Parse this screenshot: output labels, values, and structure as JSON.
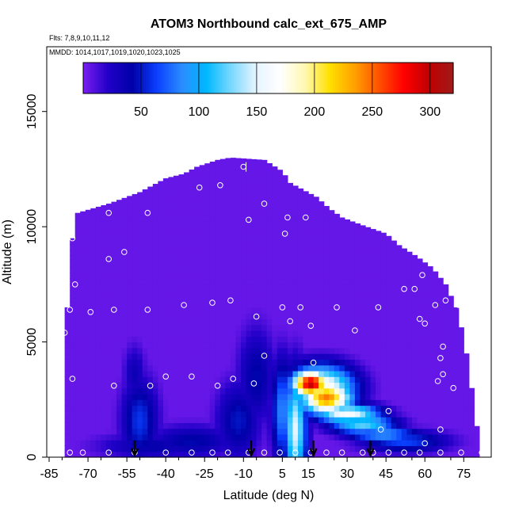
{
  "chart_data": {
    "type": "heatmap",
    "title": "ATOM3 Northbound calc_ext_675_AMP",
    "subtitle_flights": "Flts: 7,8,9,10,11,12",
    "subtitle_dates": "MMDD: 1014,1017,1019,1020,1023,1025",
    "xlabel": "Latitude (deg N)",
    "ylabel": "Altitude (m)",
    "xlim": [
      -85,
      85
    ],
    "ylim": [
      0,
      17500
    ],
    "x_ticks": [
      -85,
      -70,
      -55,
      -40,
      -25,
      -10,
      5,
      15,
      30,
      45,
      60,
      75
    ],
    "x_tick_labels": [
      "-85",
      "-70",
      "-55",
      "-40",
      "-25",
      "-10",
      "5",
      "15",
      "30",
      "45",
      "60",
      "75"
    ],
    "y_ticks": [
      0,
      5000,
      10000,
      15000
    ],
    "y_tick_labels": [
      "0",
      "5000",
      "10000",
      "15000"
    ],
    "colorbar": {
      "range": [
        0,
        320
      ],
      "ticks": [
        50,
        100,
        150,
        200,
        250,
        300
      ],
      "tick_labels": [
        "50",
        "100",
        "150",
        "200",
        "250",
        "300"
      ],
      "colors": [
        "#7a1ef0",
        "#2200c8",
        "#0000a8",
        "#0a40ff",
        "#2a8cff",
        "#00b8ff",
        "#7ad8ff",
        "#e6f4ff",
        "#ffffff",
        "#fff8b0",
        "#ffe000",
        "#ffa000",
        "#ff5000",
        "#ff0000",
        "#c00000",
        "#a01a1a"
      ]
    },
    "background_value": 5,
    "domain_top_profile": [
      [
        -78,
        6500
      ],
      [
        -76,
        9500
      ],
      [
        -74,
        10600
      ],
      [
        -62,
        11000
      ],
      [
        -50,
        11500
      ],
      [
        -40,
        12100
      ],
      [
        -33,
        12300
      ],
      [
        -28,
        12600
      ],
      [
        -20,
        12900
      ],
      [
        -15,
        13000
      ],
      [
        -2,
        12900
      ],
      [
        5,
        12400
      ],
      [
        8,
        11900
      ],
      [
        18,
        11300
      ],
      [
        23,
        10800
      ],
      [
        28,
        10400
      ],
      [
        35,
        10100
      ],
      [
        45,
        9700
      ],
      [
        50,
        9200
      ],
      [
        57,
        8700
      ],
      [
        63,
        8200
      ],
      [
        68,
        7500
      ],
      [
        72,
        6500
      ],
      [
        75,
        5200
      ],
      [
        77,
        3800
      ],
      [
        79,
        2200
      ],
      [
        81,
        500
      ]
    ],
    "hotspots": [
      {
        "x": 16,
        "y": 3200,
        "sx": 5,
        "sy": 420,
        "value": 300
      },
      {
        "x": 22,
        "y": 2600,
        "sx": 7,
        "sy": 520,
        "value": 245
      },
      {
        "x": 20,
        "y": 3000,
        "sx": 9,
        "sy": 700,
        "value": 185
      },
      {
        "x": 30,
        "y": 1900,
        "sx": 9,
        "sy": 300,
        "value": 165
      },
      {
        "x": 36,
        "y": 1450,
        "sx": 9,
        "sy": 320,
        "value": 125
      },
      {
        "x": 10,
        "y": 1200,
        "sx": 3,
        "sy": 1700,
        "value": 150
      },
      {
        "x": 5,
        "y": 2000,
        "sx": 3,
        "sy": 1600,
        "value": 85
      },
      {
        "x": 44,
        "y": 1000,
        "sx": 10,
        "sy": 230,
        "value": 95
      },
      {
        "x": 52,
        "y": 700,
        "sx": 12,
        "sy": 350,
        "value": 65
      },
      {
        "x": -50,
        "y": 1600,
        "sx": 5,
        "sy": 1300,
        "value": 60
      },
      {
        "x": -52,
        "y": 3600,
        "sx": 3,
        "sy": 900,
        "value": 35
      },
      {
        "x": -30,
        "y": 700,
        "sx": 12,
        "sy": 500,
        "value": 45
      },
      {
        "x": -45,
        "y": 500,
        "sx": 15,
        "sy": 400,
        "value": 40
      },
      {
        "x": -5,
        "y": 3500,
        "sx": 5,
        "sy": 1500,
        "value": 45
      },
      {
        "x": -12,
        "y": 1600,
        "sx": 6,
        "sy": 1200,
        "value": 50
      }
    ],
    "observation_points": [
      [
        -76,
        9500
      ],
      [
        -75,
        7500
      ],
      [
        -77,
        6400
      ],
      [
        -69,
        6300
      ],
      [
        -62,
        8600
      ],
      [
        -62,
        10600
      ],
      [
        -56,
        8900
      ],
      [
        -47,
        10600
      ],
      [
        -27,
        11700
      ],
      [
        -19,
        11800
      ],
      [
        -10,
        12600
      ],
      [
        -8,
        10300
      ],
      [
        -2,
        11000
      ],
      [
        7,
        10400
      ],
      [
        14,
        10400
      ],
      [
        6,
        9700
      ],
      [
        -60,
        6400
      ],
      [
        -47,
        6400
      ],
      [
        -33,
        6600
      ],
      [
        -22,
        6700
      ],
      [
        -15,
        6800
      ],
      [
        -5,
        6100
      ],
      [
        5,
        6500
      ],
      [
        12,
        6500
      ],
      [
        8,
        5900
      ],
      [
        16,
        5700
      ],
      [
        26,
        6500
      ],
      [
        33,
        5500
      ],
      [
        42,
        6500
      ],
      [
        52,
        7300
      ],
      [
        56,
        7300
      ],
      [
        59,
        7900
      ],
      [
        58,
        6000
      ],
      [
        60,
        5800
      ],
      [
        64,
        6600
      ],
      [
        68,
        6800
      ],
      [
        73,
        6600
      ],
      [
        67,
        4800
      ],
      [
        66,
        4300
      ],
      [
        67,
        3600
      ],
      [
        65,
        3300
      ],
      [
        71,
        3000
      ],
      [
        -79,
        5400
      ],
      [
        -76,
        3400
      ],
      [
        -60,
        3100
      ],
      [
        -46,
        3100
      ],
      [
        -40,
        3500
      ],
      [
        -30,
        3500
      ],
      [
        -20,
        3100
      ],
      [
        -14,
        3400
      ],
      [
        -6,
        3200
      ],
      [
        -2,
        4400
      ],
      [
        17,
        4100
      ],
      [
        46,
        2000
      ],
      [
        43,
        1200
      ],
      [
        66,
        1200
      ],
      [
        60,
        600
      ],
      [
        -77,
        200
      ],
      [
        -72,
        200
      ],
      [
        -62,
        200
      ],
      [
        -52,
        200
      ],
      [
        -40,
        200
      ],
      [
        -30,
        200
      ],
      [
        -22,
        200
      ],
      [
        -16,
        200
      ],
      [
        -8,
        200
      ],
      [
        -2,
        200
      ],
      [
        4,
        200
      ],
      [
        10,
        200
      ],
      [
        16,
        200
      ],
      [
        22,
        200
      ],
      [
        28,
        200
      ],
      [
        36,
        200
      ],
      [
        40,
        200
      ],
      [
        46,
        200
      ],
      [
        52,
        200
      ],
      [
        58,
        200
      ],
      [
        66,
        200
      ],
      [
        74,
        200
      ],
      [
        82,
        200
      ]
    ],
    "flight_track_marker": [
      -9,
      12800
    ],
    "arrow_latitudes": [
      -52,
      -7,
      17,
      39
    ]
  }
}
